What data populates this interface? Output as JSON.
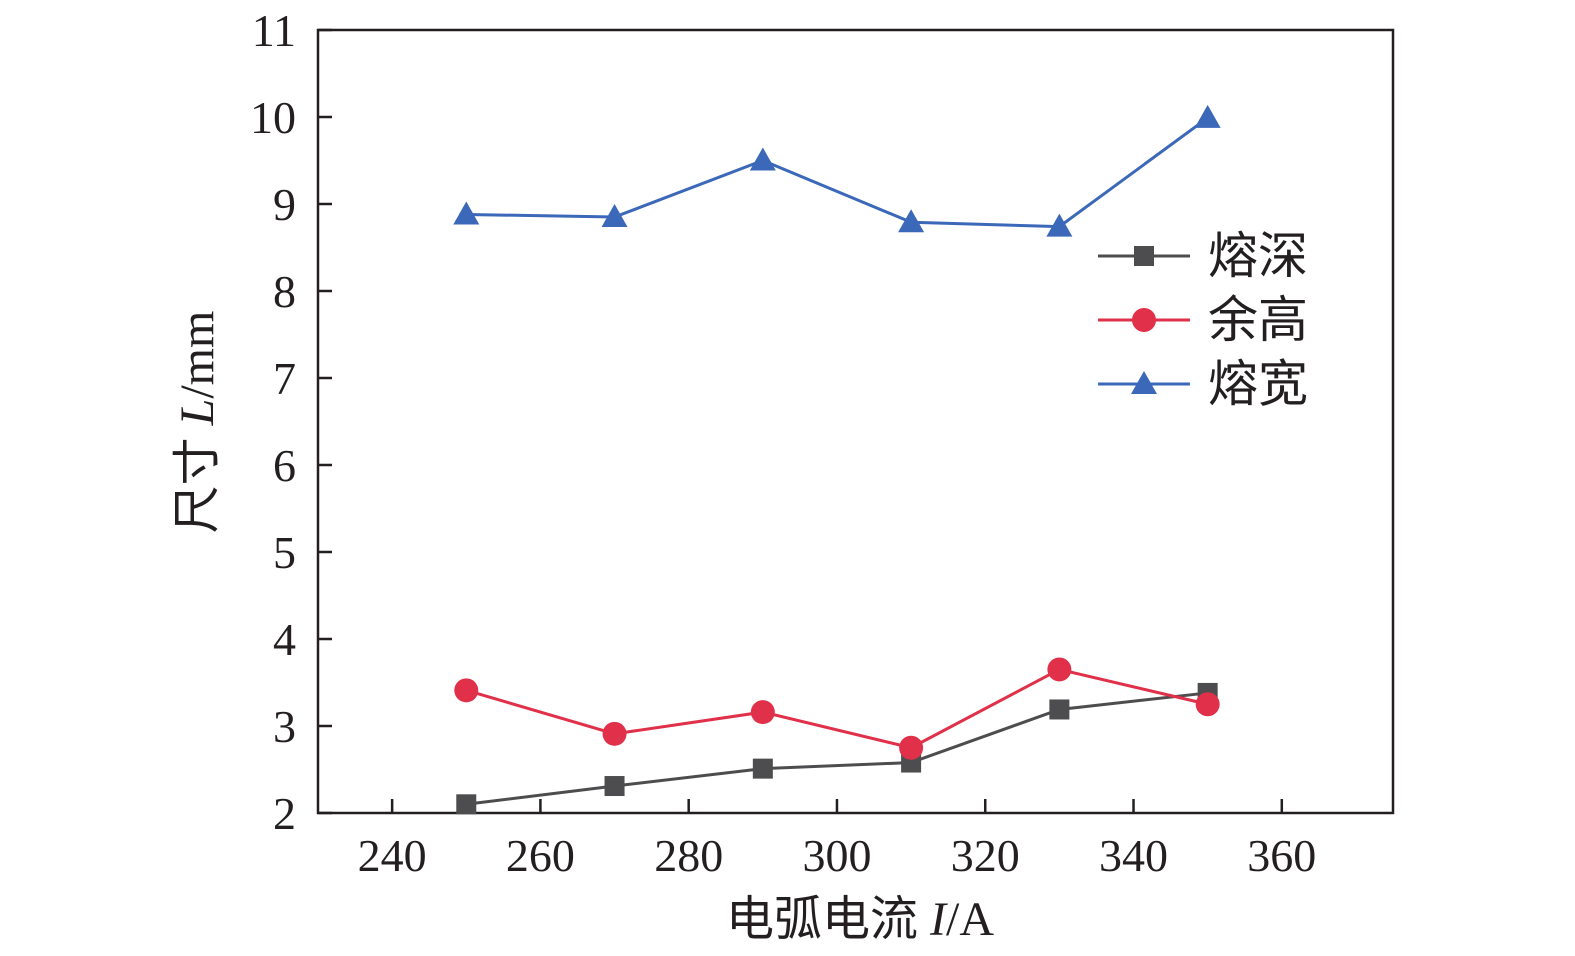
{
  "chart_data": {
    "type": "line",
    "xlabel": {
      "prefix": "电弧电流 ",
      "var": "I",
      "unit": "/A"
    },
    "ylabel": {
      "prefix": "尺寸 ",
      "var": "L",
      "unit": "/mm"
    },
    "xlim": [
      230,
      375
    ],
    "ylim": [
      2,
      11
    ],
    "xticks": [
      240,
      260,
      280,
      300,
      320,
      340,
      360
    ],
    "yticks": [
      2,
      3,
      4,
      5,
      6,
      7,
      8,
      9,
      10,
      11
    ],
    "x": [
      250,
      270,
      290,
      310,
      330,
      350
    ],
    "legend_position": "right, upper-middle",
    "grid": false,
    "series": [
      {
        "name": "熔深",
        "marker": "square",
        "color": "#4d4d4f",
        "values": [
          2.1,
          2.31,
          2.51,
          2.58,
          3.19,
          3.38
        ]
      },
      {
        "name": "余高",
        "marker": "circle",
        "color": "#e0304a",
        "values": [
          3.41,
          2.91,
          3.16,
          2.75,
          3.65,
          3.25
        ]
      },
      {
        "name": "熔宽",
        "marker": "triangle",
        "color": "#3b68b8",
        "values": [
          8.88,
          8.85,
          9.5,
          8.79,
          8.74,
          9.99
        ]
      }
    ]
  }
}
